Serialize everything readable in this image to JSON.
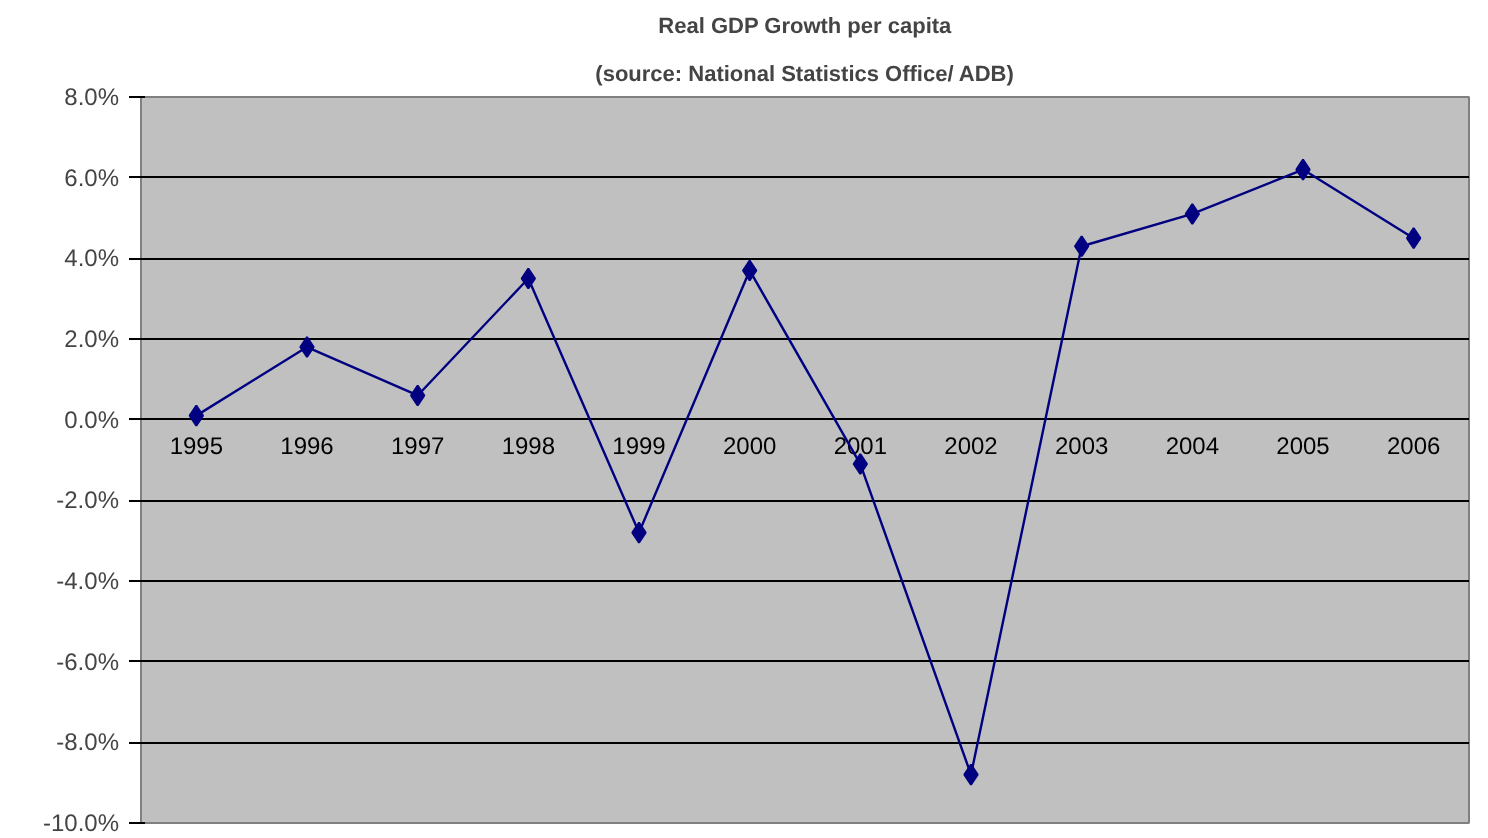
{
  "chart_data": {
    "type": "line",
    "title": "Real GDP Growth per capita",
    "subtitle": "(source: National Statistics Office/ ADB)",
    "categories": [
      "1995",
      "1996",
      "1997",
      "1998",
      "1999",
      "2000",
      "2001",
      "2002",
      "2003",
      "2004",
      "2005",
      "2006"
    ],
    "series": [
      {
        "color": "#000080",
        "values": [
          0.1,
          1.8,
          0.6,
          3.5,
          -2.8,
          3.7,
          -1.1,
          -8.8,
          4.3,
          5.1,
          6.2,
          4.5
        ]
      }
    ],
    "ylim": [
      -10,
      8
    ],
    "yticks": [
      {
        "value": -10,
        "label": "-10.0%"
      },
      {
        "value": -8,
        "label": "-8.0%"
      },
      {
        "value": -6,
        "label": "-6.0%"
      },
      {
        "value": -4,
        "label": "-4.0%"
      },
      {
        "value": -2,
        "label": "-2.0%"
      },
      {
        "value": 0,
        "label": "0.0%"
      },
      {
        "value": 2,
        "label": "2.0%"
      },
      {
        "value": 4,
        "label": "4.0%"
      },
      {
        "value": 6,
        "label": "6.0%"
      },
      {
        "value": 8,
        "label": "8.0%"
      }
    ],
    "grid": "y",
    "marker": "diamond",
    "line_style": "solid"
  }
}
